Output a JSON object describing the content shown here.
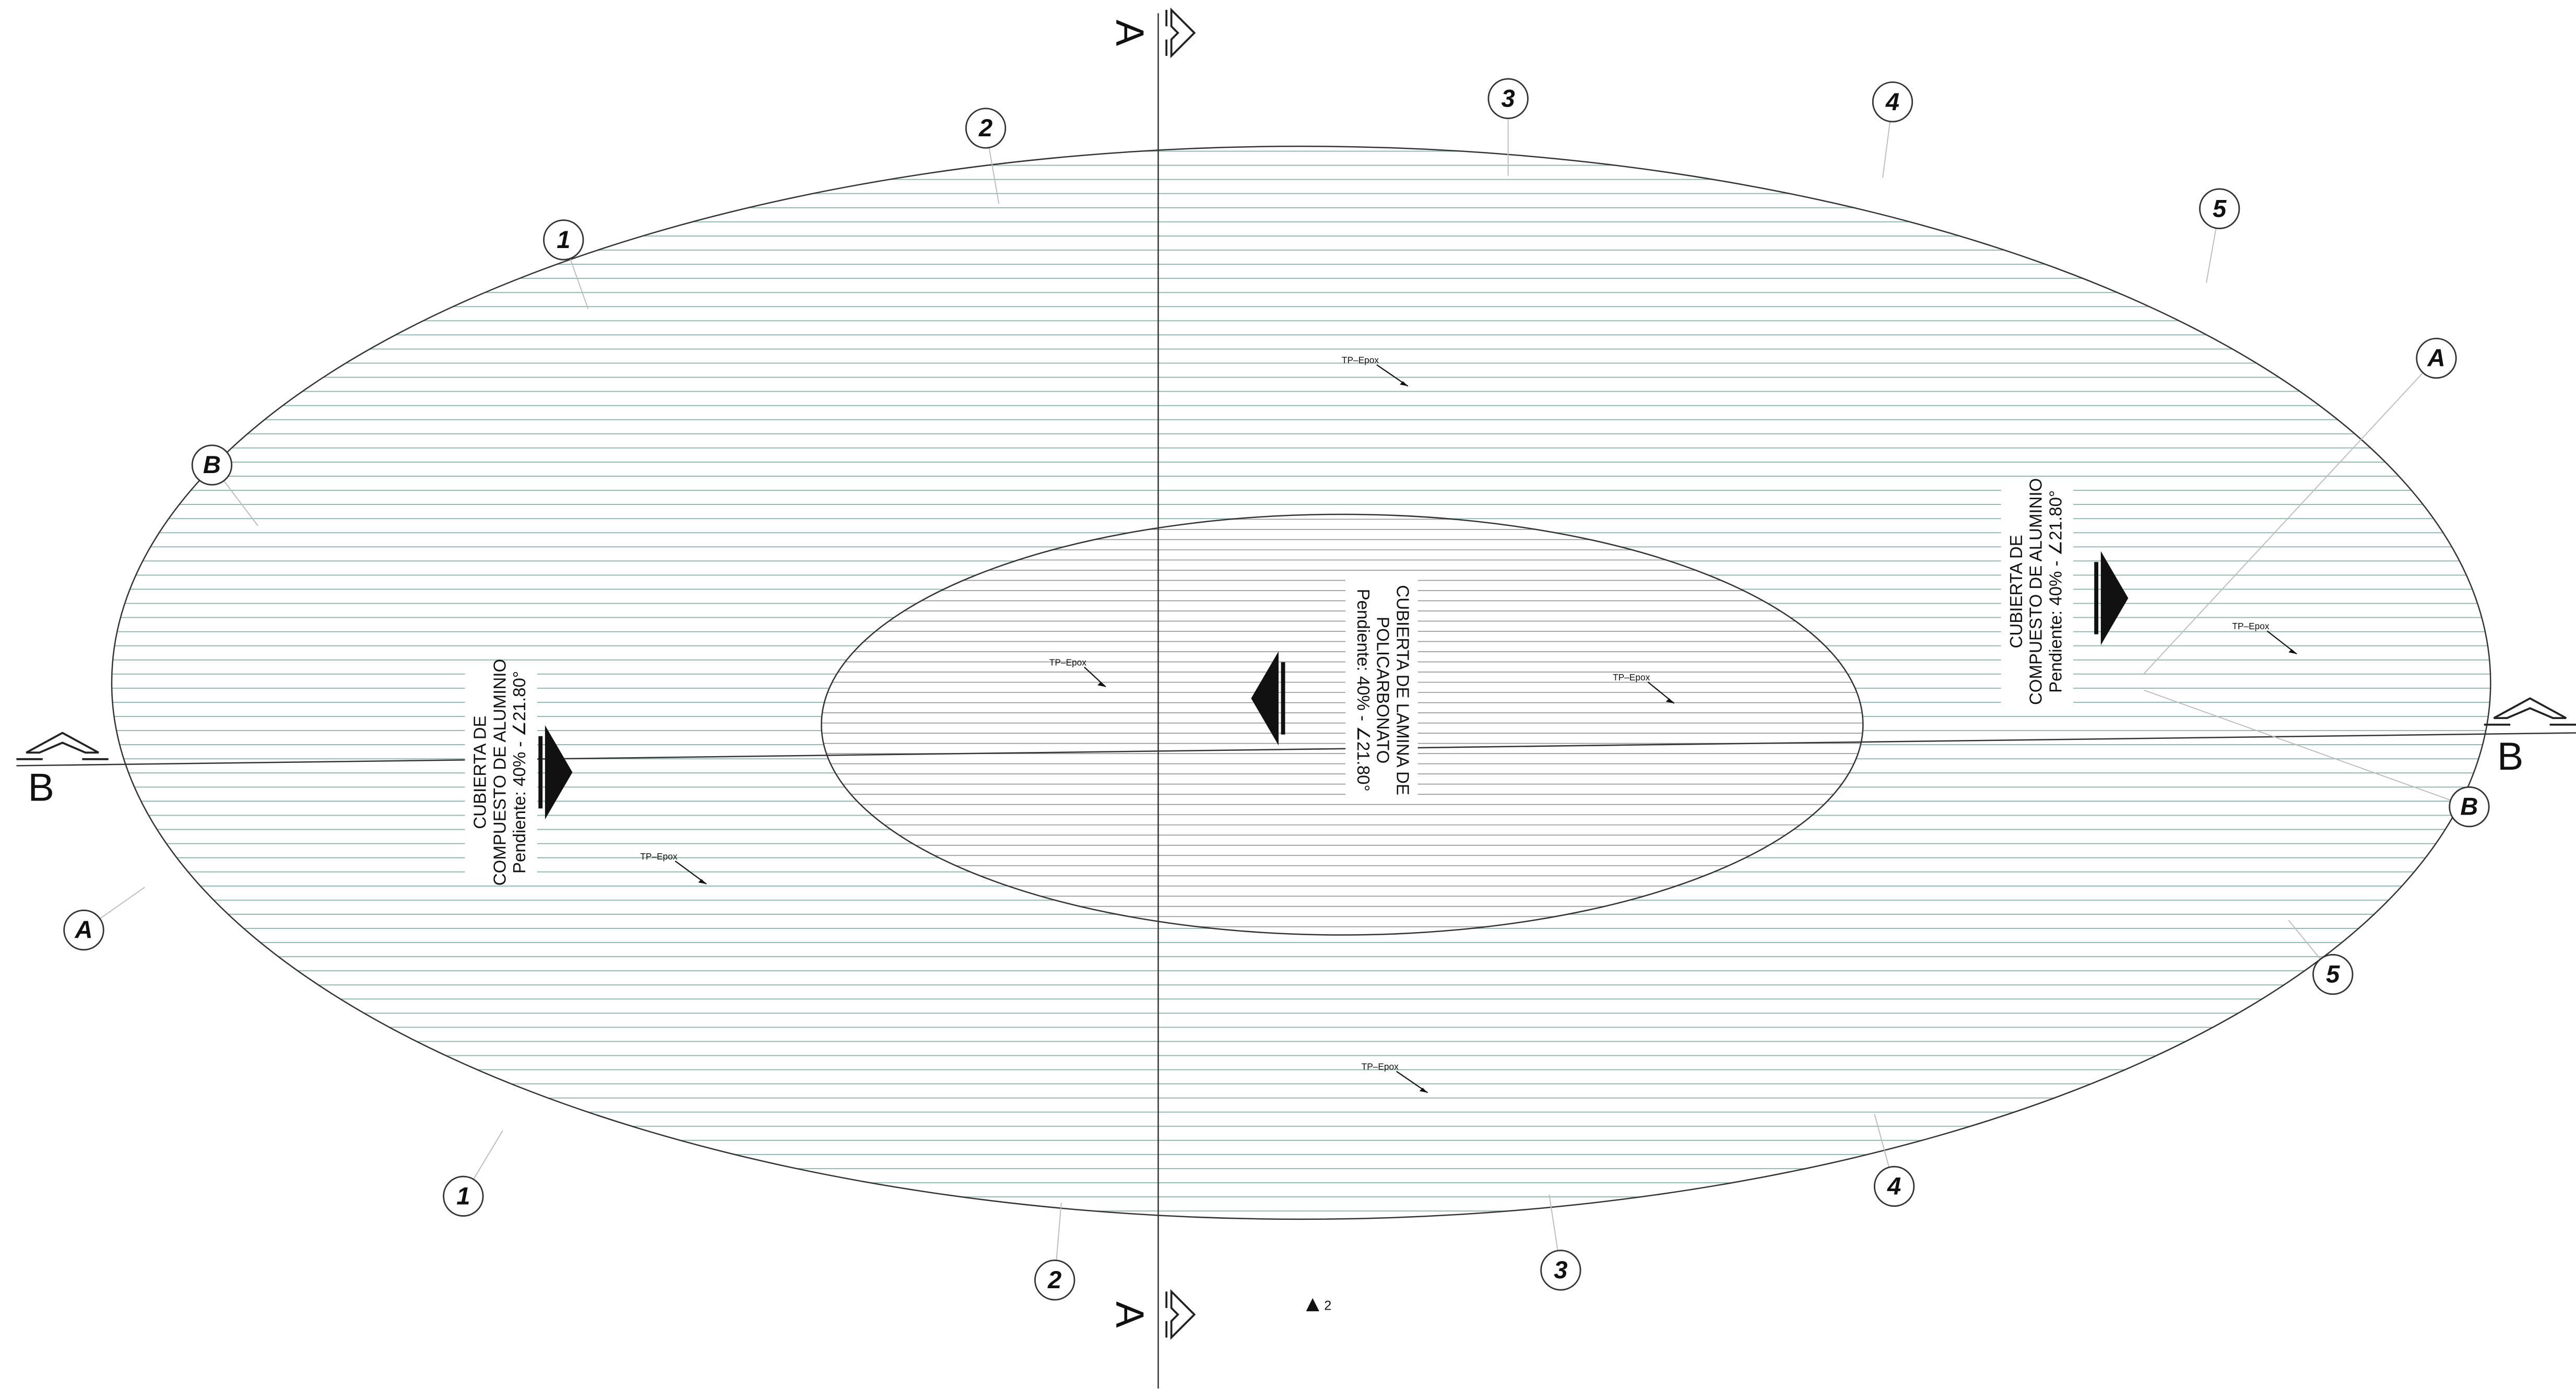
{
  "section_marks": [
    "A",
    "A",
    "B",
    "B"
  ],
  "bubbles": [
    "1",
    "2",
    "3",
    "4",
    "5",
    "A",
    "B",
    "A",
    "1",
    "2",
    "3",
    "4",
    "5",
    "B"
  ],
  "roof_labels": [
    {
      "lines": [
        "CUBIERTA DE",
        "COMPUESTO DE ALUMINIO",
        "Pendiente: 40% - ∠21.80°"
      ]
    },
    {
      "lines": [
        "CUBIERTA DE LAMINA DE",
        "POLICARBONATO",
        "Pendiente: 40% - ∠21.80°"
      ]
    },
    {
      "lines": [
        "CUBIERTA DE",
        "COMPUESTO DE ALUMINIO",
        "Pendiente: 40% - ∠21.80°"
      ]
    }
  ],
  "tags": [
    "TP–Epox",
    "TP–Epox",
    "TP–Epox",
    "TP–Epox",
    "TP–Epox",
    "TP–Epox"
  ],
  "level_mark": "2"
}
